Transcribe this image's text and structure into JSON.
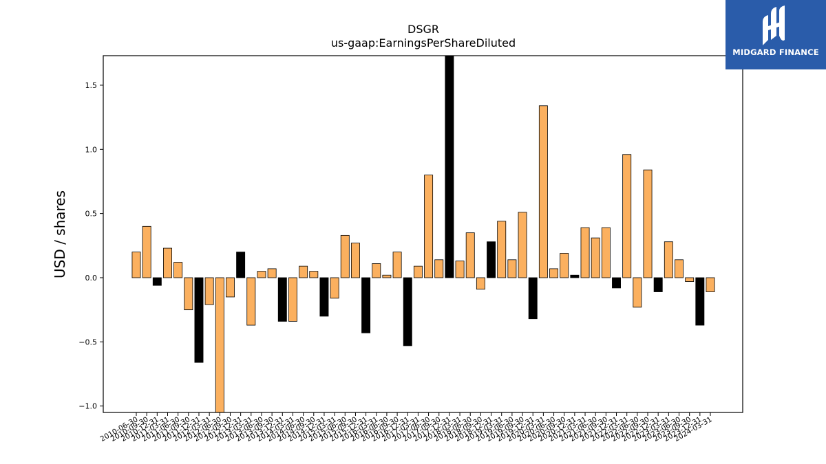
{
  "chart_data": {
    "type": "bar",
    "title": "DSGR",
    "subtitle": "us-gaap:EarningsPerShareDiluted",
    "xlabel": "",
    "ylabel": "USD / shares",
    "ylim": [
      -1.05,
      1.73
    ],
    "yticks": [
      -1.0,
      -0.5,
      0.0,
      0.5,
      1.0,
      1.5
    ],
    "ytick_labels": [
      "−1.0",
      "−0.5",
      "0.0",
      "0.5",
      "1.0",
      "1.5"
    ],
    "grid": false,
    "legend": "none",
    "categories": [
      "2010-06-30",
      "2010-09-30",
      "2010-12-31",
      "2011-03-31",
      "2011-06-30",
      "2011-09-30",
      "2011-12-31",
      "2012-03-31",
      "2012-06-30",
      "2012-09-30",
      "2012-12-31",
      "2013-03-31",
      "2013-06-30",
      "2013-09-30",
      "2013-12-31",
      "2014-03-31",
      "2014-06-30",
      "2014-09-30",
      "2014-12-31",
      "2015-03-31",
      "2015-06-30",
      "2015-09-30",
      "2015-12-31",
      "2016-03-31",
      "2016-06-30",
      "2016-09-30",
      "2016-12-31",
      "2017-03-31",
      "2017-06-30",
      "2017-09-30",
      "2017-12-31",
      "2018-03-31",
      "2018-06-30",
      "2018-09-30",
      "2018-12-31",
      "2019-03-31",
      "2019-06-30",
      "2019-09-30",
      "2019-12-31",
      "2020-03-31",
      "2020-06-30",
      "2020-09-30",
      "2020-12-31",
      "2021-03-31",
      "2021-06-30",
      "2021-09-30",
      "2021-12-31",
      "2022-03-31",
      "2022-06-30",
      "2022-09-30",
      "2022-12-31",
      "2023-03-31",
      "2023-06-30",
      "2023-09-30",
      "2023-12-31",
      "2024-03-31"
    ],
    "values": [
      0.2,
      0.4,
      -0.06,
      0.23,
      0.12,
      -0.25,
      -0.66,
      -0.21,
      -1.05,
      -0.15,
      0.2,
      -0.37,
      0.05,
      0.07,
      -0.34,
      -0.34,
      0.09,
      0.05,
      -0.3,
      -0.16,
      0.33,
      0.27,
      -0.43,
      0.11,
      0.02,
      0.2,
      -0.53,
      0.09,
      0.8,
      0.14,
      1.73,
      0.13,
      0.35,
      -0.09,
      0.28,
      0.44,
      0.14,
      0.51,
      -0.32,
      1.34,
      0.07,
      0.19,
      0.02,
      0.39,
      0.31,
      0.39,
      -0.08,
      0.96,
      -0.23,
      0.84,
      -0.11,
      0.28,
      0.14,
      -0.03,
      -0.37,
      -0.11
    ],
    "bar_colors": {
      "highlight": "#000000",
      "default": "#fbb05f",
      "edge": "#000000"
    },
    "highlighted_categories": [
      "2010-12-31",
      "2011-12-31",
      "2012-12-31",
      "2013-12-31",
      "2014-12-31",
      "2015-12-31",
      "2016-12-31",
      "2017-12-31",
      "2018-12-31",
      "2019-12-31",
      "2020-12-31",
      "2021-12-31",
      "2022-12-31",
      "2023-12-31"
    ]
  },
  "logo": {
    "text": "MIDGARD FINANCE",
    "background": "#2a5caa"
  }
}
